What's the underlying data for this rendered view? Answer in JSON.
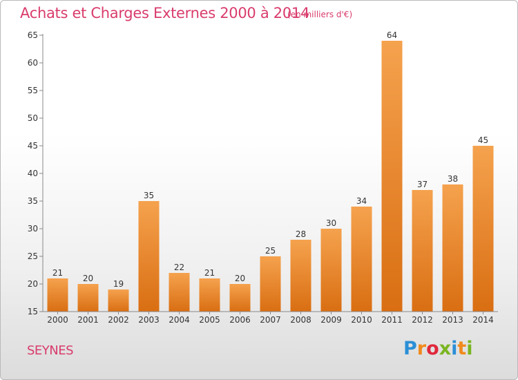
{
  "header": {
    "title": "Achats et Charges Externes 2000 à 2014",
    "subtitle": "(en milliers d'€)"
  },
  "footer": {
    "commune": "SEYNES",
    "logo": {
      "letters": [
        "P",
        "r",
        "o",
        "x",
        "i",
        "t",
        "i"
      ],
      "colors": [
        "#2b8fd6",
        "#f08a1c",
        "#e0283c",
        "#7ab520",
        "#2b8fd6",
        "#f08a1c",
        "#7ab520"
      ]
    }
  },
  "chart_data": {
    "type": "bar",
    "categories": [
      "2000",
      "2001",
      "2002",
      "2003",
      "2004",
      "2005",
      "2006",
      "2007",
      "2008",
      "2009",
      "2010",
      "2011",
      "2012",
      "2013",
      "2014"
    ],
    "values": [
      21,
      20,
      19,
      35,
      22,
      21,
      20,
      25,
      28,
      30,
      34,
      64,
      37,
      38,
      45
    ],
    "ylim": [
      15,
      65
    ],
    "yticks": [
      15,
      20,
      25,
      30,
      35,
      40,
      45,
      50,
      55,
      60,
      65
    ],
    "grid": false,
    "bar_color_top": "#f5a24e",
    "bar_color_bottom": "#d96e12",
    "axis_color": "#888888",
    "label_color": "#333333"
  }
}
